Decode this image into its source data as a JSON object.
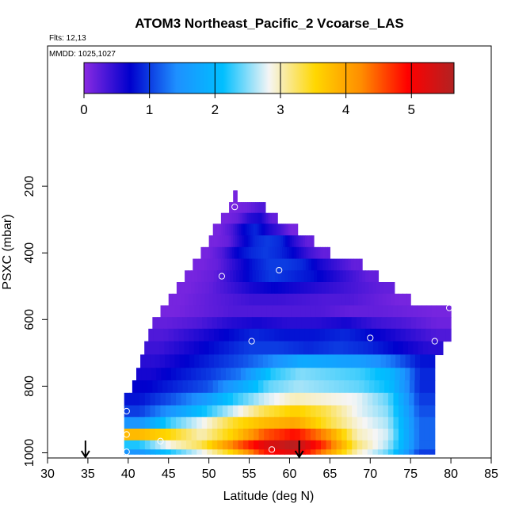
{
  "header": {
    "title": "ATOM3 Northeast_Pacific_2 Vcoarse_LAS",
    "flights": "Flts: 12,13",
    "dates": "MMDD: 1025,1027"
  },
  "chart_data": {
    "type": "heatmap",
    "title": "ATOM3 Northeast_Pacific_2 Vcoarse_LAS",
    "xlabel": "Latitude (deg N)",
    "ylabel": "PSXC (mbar)",
    "xlim": [
      30,
      85
    ],
    "ylim": [
      1000,
      0
    ],
    "x_ticks": [
      30,
      35,
      40,
      45,
      50,
      55,
      60,
      65,
      70,
      75,
      80,
      85
    ],
    "y_ticks": [
      200,
      400,
      600,
      800,
      1000
    ],
    "colorbar": {
      "ticks": [
        0,
        1,
        2,
        3,
        4,
        5
      ],
      "range": [
        0,
        5.65
      ],
      "colors": [
        "#8a2be2",
        "#0000cd",
        "#1e90ff",
        "#00bfff",
        "#f5f5f5",
        "#ffd700",
        "#ff8c00",
        "#ff0000",
        "#b22222"
      ]
    },
    "rows": [
      {
        "p": 230,
        "lat": [
          53.0,
          53.5
        ],
        "values": [
          0.1
        ]
      },
      {
        "p": 265,
        "lat": [
          52.5,
          57.0
        ],
        "values": [
          0.1,
          0.15,
          0.3
        ]
      },
      {
        "p": 295,
        "lat": [
          51.5,
          58.5
        ],
        "values": [
          0.1,
          0.2,
          0.5,
          0.6,
          0.2
        ]
      },
      {
        "p": 330,
        "lat": [
          50.5,
          61.0
        ],
        "values": [
          0.1,
          0.3,
          0.7,
          0.9,
          0.6,
          0.4,
          0.1
        ]
      },
      {
        "p": 365,
        "lat": [
          50.0,
          63.0
        ],
        "values": [
          0.1,
          0.2,
          0.6,
          0.9,
          1.0,
          0.9,
          0.5,
          0.2
        ]
      },
      {
        "p": 400,
        "lat": [
          49.0,
          65.0
        ],
        "values": [
          0.1,
          0.3,
          0.7,
          0.9,
          1.0,
          0.9,
          0.7,
          0.4,
          0.2
        ]
      },
      {
        "p": 435,
        "lat": [
          48.0,
          69.0
        ],
        "values": [
          0.1,
          0.2,
          0.5,
          0.8,
          1.0,
          1.0,
          0.9,
          0.6,
          0.4,
          0.2
        ]
      },
      {
        "p": 470,
        "lat": [
          47.0,
          71.0
        ],
        "values": [
          0.1,
          0.2,
          0.5,
          0.8,
          1.0,
          0.9,
          0.8,
          0.6,
          0.4,
          0.2
        ]
      },
      {
        "p": 505,
        "lat": [
          46.0,
          73.0
        ],
        "values": [
          0.1,
          0.2,
          0.4,
          0.6,
          0.7,
          0.6,
          0.5,
          0.4,
          0.3,
          0.2
        ]
      },
      {
        "p": 540,
        "lat": [
          45.0,
          75.0
        ],
        "values": [
          0.1,
          0.2,
          0.3,
          0.4,
          0.4,
          0.35,
          0.3,
          0.3,
          0.2,
          0.1
        ]
      },
      {
        "p": 575,
        "lat": [
          44.0,
          80.0
        ],
        "values": [
          0.1,
          0.2,
          0.3,
          0.3,
          0.3,
          0.3,
          0.2,
          0.2,
          0.15,
          0.1
        ]
      },
      {
        "p": 610,
        "lat": [
          43.0,
          80.0
        ],
        "values": [
          0.2,
          0.3,
          0.5,
          0.6,
          0.5,
          0.5,
          0.6,
          0.4,
          0.3,
          0.15
        ]
      },
      {
        "p": 645,
        "lat": [
          42.5,
          80.0
        ],
        "values": [
          0.3,
          0.5,
          0.7,
          0.9,
          0.8,
          0.8,
          0.9,
          0.7,
          0.5,
          0.3
        ]
      },
      {
        "p": 685,
        "lat": [
          42.0,
          79.0
        ],
        "values": [
          0.4,
          0.6,
          0.8,
          1.0,
          1.0,
          0.9,
          1.0,
          0.9,
          0.7,
          0.5
        ]
      },
      {
        "p": 725,
        "lat": [
          41.5,
          78.0
        ],
        "values": [
          0.5,
          0.7,
          0.9,
          1.1,
          1.4,
          1.8,
          1.7,
          1.6,
          1.3,
          0.8
        ]
      },
      {
        "p": 765,
        "lat": [
          41.0,
          78.0
        ],
        "values": [
          0.6,
          0.8,
          1.0,
          1.3,
          2.2,
          2.5,
          2.4,
          2.3,
          2.0,
          0.9
        ]
      },
      {
        "p": 800,
        "lat": [
          40.5,
          78.0
        ],
        "values": [
          0.7,
          0.9,
          1.1,
          1.7,
          2.4,
          2.6,
          2.5,
          2.4,
          2.1,
          0.9
        ]
      },
      {
        "p": 840,
        "lat": [
          39.5,
          78.0
        ],
        "values": [
          0.8,
          1.1,
          1.5,
          2.2,
          2.7,
          3.0,
          2.9,
          2.8,
          2.4,
          1.0
        ]
      },
      {
        "p": 875,
        "lat": [
          39.5,
          78.0
        ],
        "values": [
          1.0,
          1.5,
          2.1,
          2.7,
          3.3,
          3.6,
          3.3,
          2.8,
          2.5,
          1.1
        ]
      },
      {
        "p": 910,
        "lat": [
          39.5,
          78.0
        ],
        "values": [
          1.5,
          2.3,
          2.8,
          3.4,
          3.8,
          4.0,
          3.4,
          2.9,
          2.6,
          1.2
        ]
      },
      {
        "p": 945,
        "lat": [
          39.5,
          78.0
        ],
        "values": [
          3.8,
          3.5,
          3.0,
          3.6,
          4.5,
          4.9,
          4.2,
          3.0,
          2.7,
          1.2
        ]
      },
      {
        "p": 980,
        "lat": [
          39.5,
          78.0
        ],
        "values": [
          2.2,
          2.9,
          3.3,
          4.3,
          5.2,
          5.6,
          4.6,
          3.2,
          2.6,
          1.2
        ]
      },
      {
        "p": 1000,
        "lat": [
          39.5,
          78.0
        ],
        "values": [
          1.5,
          2.2,
          2.8,
          3.6,
          4.8,
          5.3,
          4.2,
          3.0,
          2.4,
          1.0
        ]
      }
    ],
    "sample_points": [
      {
        "lat": 53.2,
        "p": 262
      },
      {
        "lat": 51.6,
        "p": 470
      },
      {
        "lat": 58.7,
        "p": 452
      },
      {
        "lat": 79.8,
        "p": 565
      },
      {
        "lat": 55.3,
        "p": 665
      },
      {
        "lat": 70.0,
        "p": 655
      },
      {
        "lat": 78.0,
        "p": 665
      },
      {
        "lat": 39.8,
        "p": 875
      },
      {
        "lat": 39.8,
        "p": 945
      },
      {
        "lat": 44.0,
        "p": 965
      },
      {
        "lat": 39.8,
        "p": 997
      },
      {
        "lat": 57.8,
        "p": 990
      },
      {
        "lat": 79.0,
        "p": 990
      }
    ],
    "arrows_lat": [
      34.7,
      61.2
    ]
  }
}
